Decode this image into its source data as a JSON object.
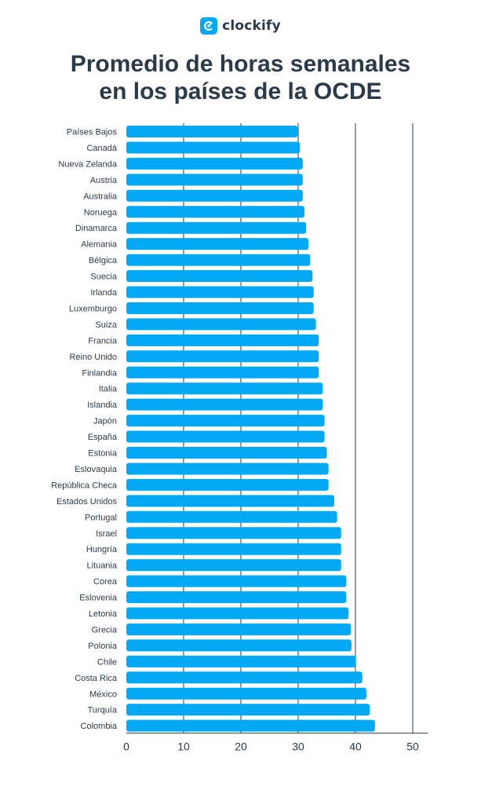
{
  "brand": {
    "name": "clockify",
    "logo_color": "#03a9f4",
    "logo_icon": "clock-c-logo-icon"
  },
  "chart_data": {
    "type": "bar",
    "orientation": "horizontal",
    "title_lines": [
      "Promedio de horas semanales",
      "en los países de la OCDE"
    ],
    "bar_color": "#03a9f4",
    "xlim": [
      0,
      52
    ],
    "x_ticks": [
      0,
      10,
      20,
      30,
      40,
      50
    ],
    "grid": true,
    "categories": [
      "Países Bajos",
      "Canadá",
      "Nueva Zelanda",
      "Austria",
      "Australia",
      "Noruega",
      "Dinamarca",
      "Alemania",
      "Bélgica",
      "Suecia",
      "Irlanda",
      "Luxemburgo",
      "Suiza",
      "Francia",
      "Reino Unido",
      "Finlandia",
      "Italia",
      "Islandia",
      "Japón",
      "España",
      "Estonia",
      "Eslovaquia",
      "República Checa",
      "Estados Unidos",
      "Portugal",
      "Israel",
      "Hungría",
      "Lituania",
      "Corea",
      "Eslovenia",
      "Letonia",
      "Grecia",
      "Polonia",
      "Chile",
      "Costa Rica",
      "México",
      "Turquía",
      "Colombia"
    ],
    "values": [
      29.9,
      30.3,
      30.8,
      30.8,
      30.8,
      31.1,
      31.4,
      31.8,
      32.1,
      32.5,
      32.7,
      32.7,
      33.1,
      33.6,
      33.6,
      33.6,
      34.3,
      34.3,
      34.6,
      34.6,
      35.0,
      35.3,
      35.3,
      36.3,
      36.8,
      37.5,
      37.5,
      37.5,
      38.4,
      38.4,
      38.8,
      39.2,
      39.3,
      40.1,
      41.2,
      41.9,
      42.5,
      43.4
    ]
  }
}
